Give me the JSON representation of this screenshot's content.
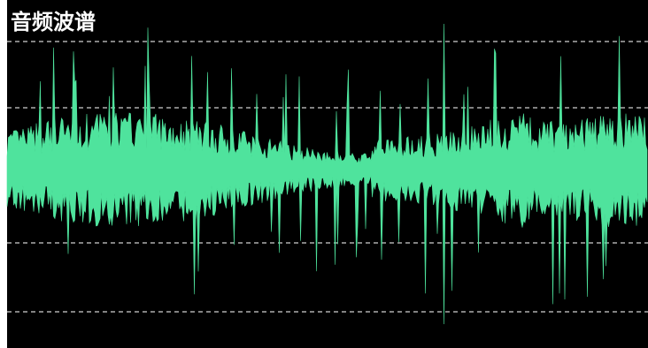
{
  "title": "音频波谱"
}
